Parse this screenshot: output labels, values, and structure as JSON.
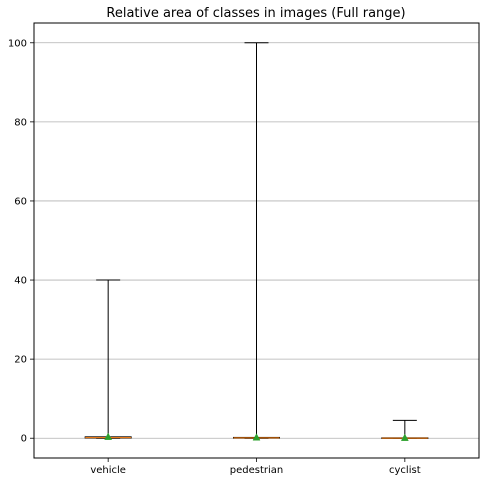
{
  "chart_data": {
    "type": "box",
    "title": "Relative area of classes in images (Full range)",
    "xlabel": "",
    "ylabel": "",
    "categories": [
      "vehicle",
      "pedestrian",
      "cyclist"
    ],
    "boxes": [
      {
        "name": "vehicle",
        "min": 0,
        "q1": 0.05,
        "median": 0.15,
        "q3": 0.35,
        "max": 40,
        "mean": 0.4
      },
      {
        "name": "pedestrian",
        "min": 0,
        "q1": 0.02,
        "median": 0.08,
        "q3": 0.2,
        "max": 100,
        "mean": 0.25
      },
      {
        "name": "cyclist",
        "min": 0,
        "q1": 0.01,
        "median": 0.04,
        "q3": 0.1,
        "max": 4.5,
        "mean": 0.15
      }
    ],
    "ylim": [
      -5,
      105
    ],
    "yticks": [
      0,
      20,
      40,
      60,
      80,
      100
    ],
    "grid": "y",
    "colors": {
      "box": "#000000",
      "median": "#ff7f0e",
      "mean": "#2ca02c",
      "grid": "#b0b0b0"
    }
  }
}
